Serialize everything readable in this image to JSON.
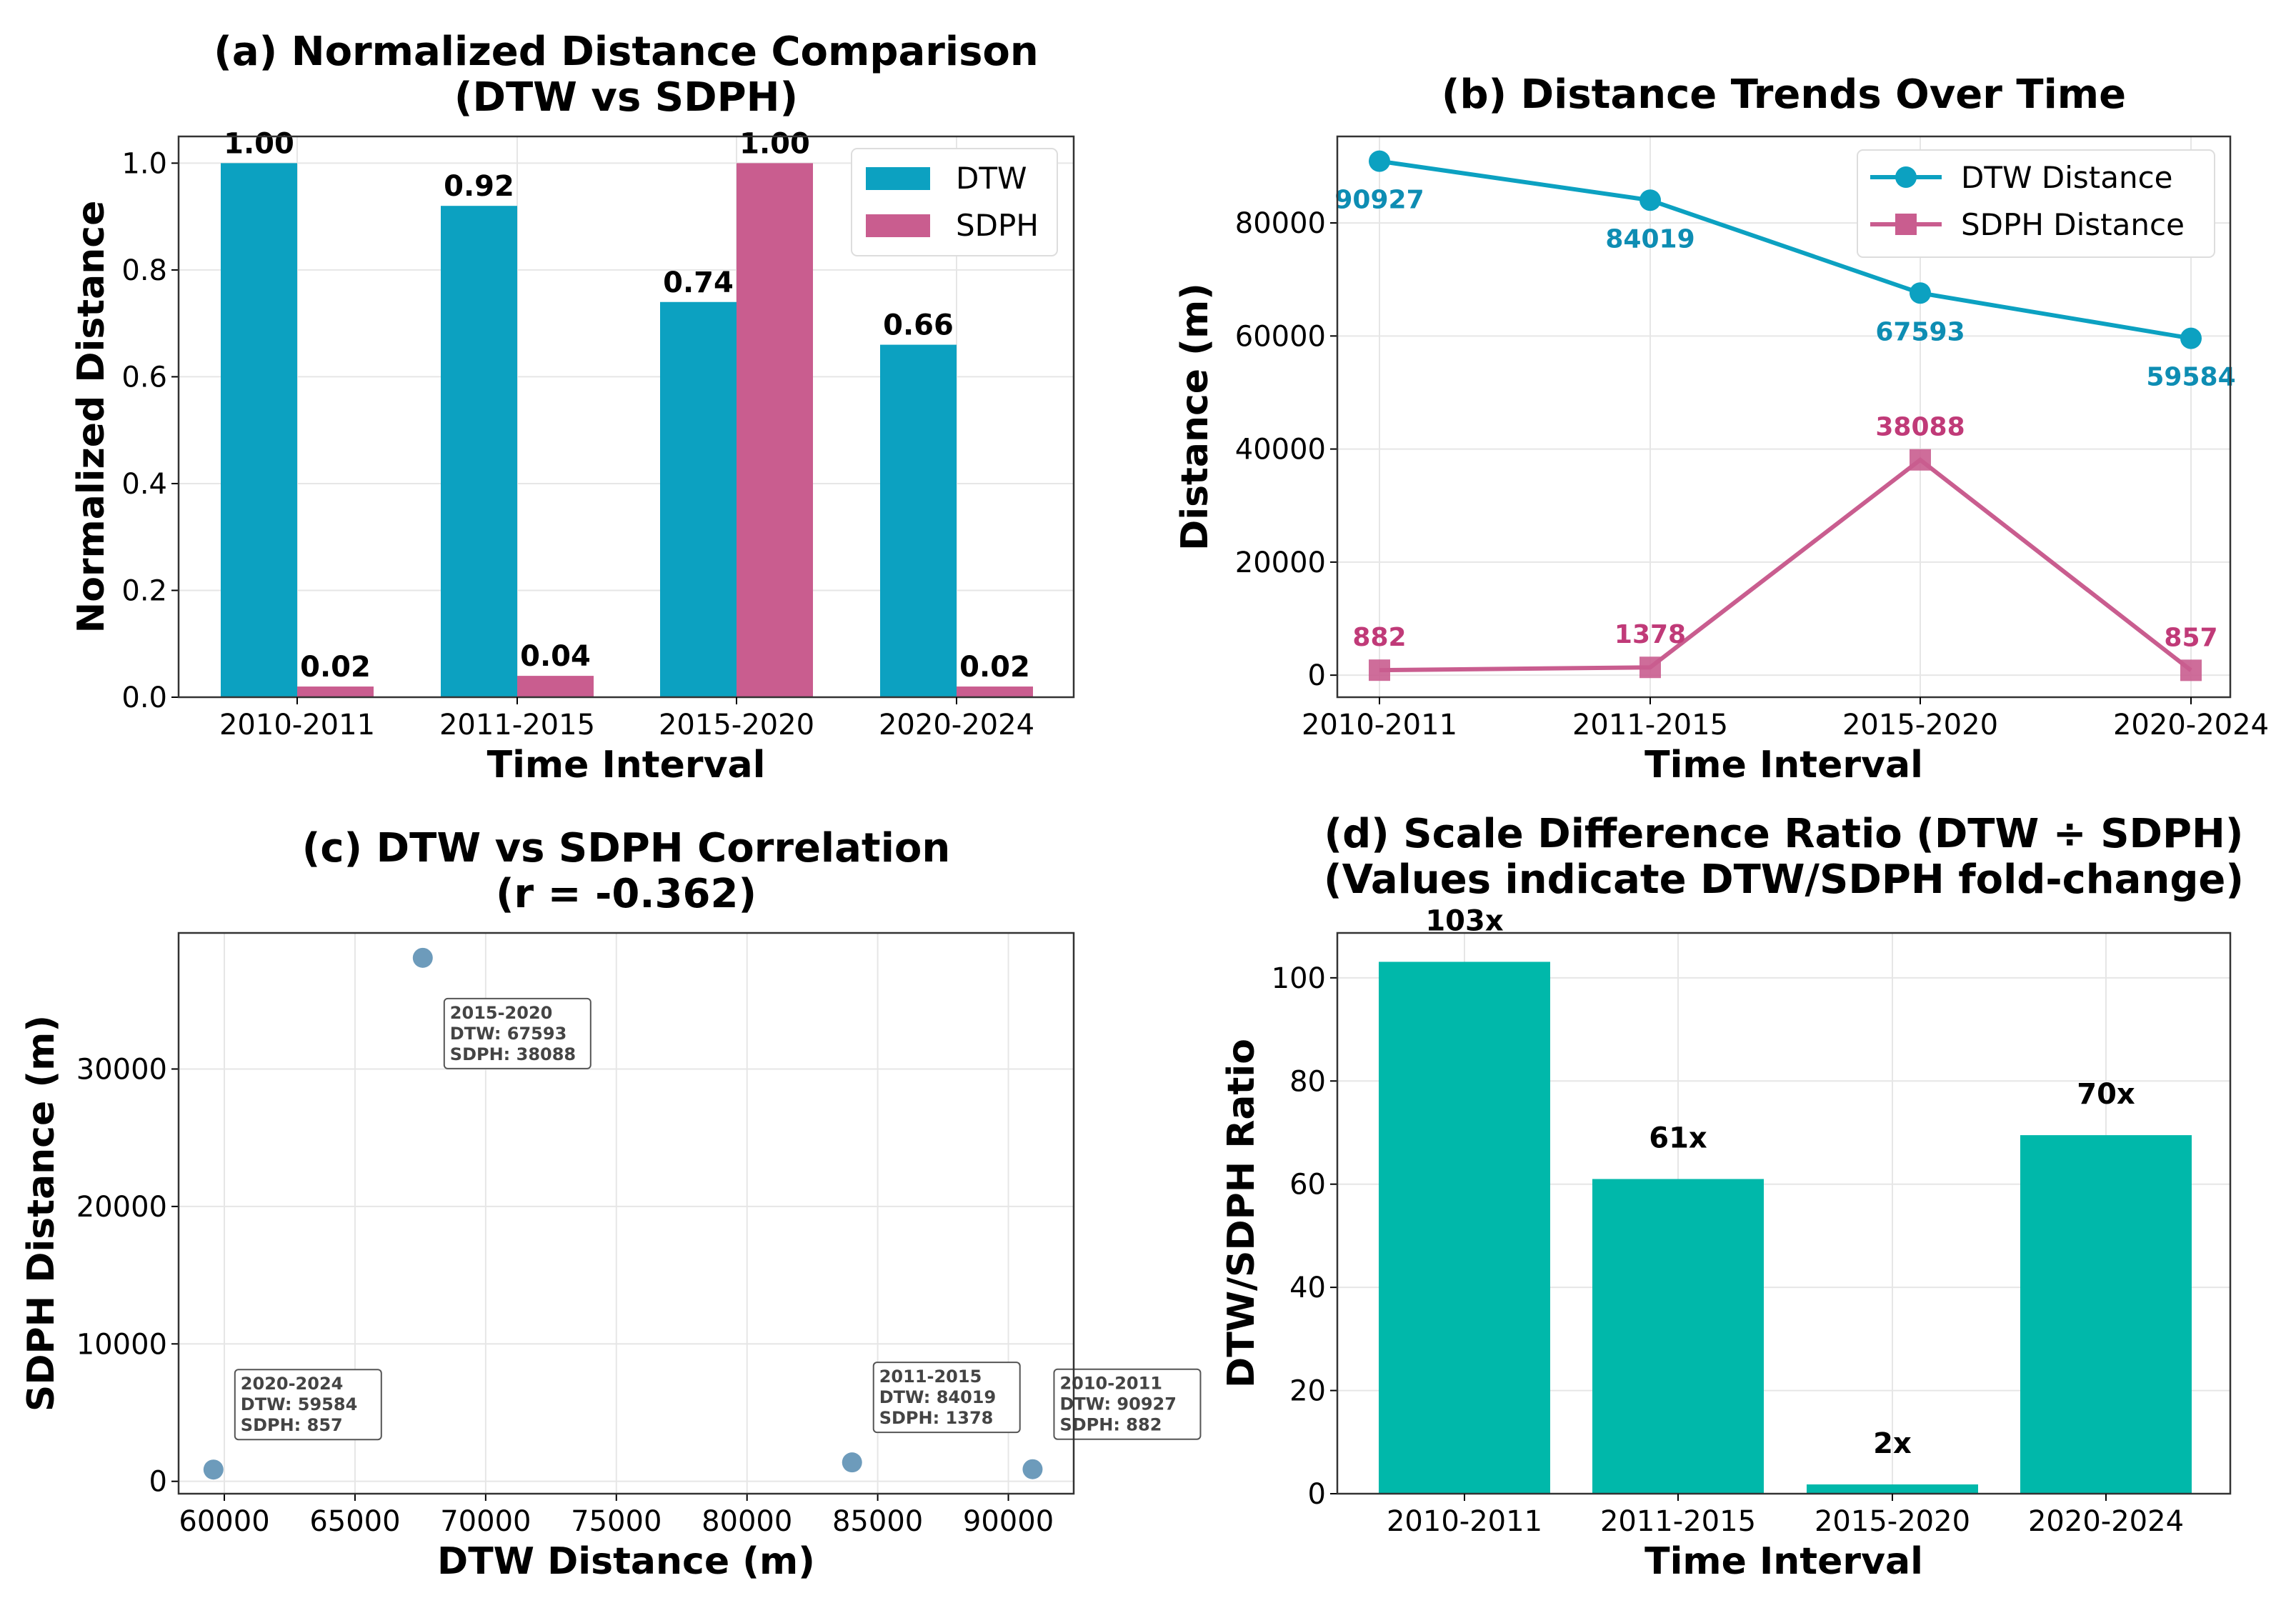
{
  "colors": {
    "dtw": "#0ca1c1",
    "sdph": "#c95d8f",
    "dtw_label": "#0e8db3",
    "sdph_label": "#c03a78",
    "scatter": "#6d9bbb",
    "ratio": "#00b8aa"
  },
  "chart_data": [
    {
      "type": "bar",
      "title": "(a) Normalized Distance Comparison\n(DTW vs SDPH)",
      "xlabel": "Time Interval",
      "ylabel": "Normalized Distance",
      "categories": [
        "2010-2011",
        "2011-2015",
        "2015-2020",
        "2020-2024"
      ],
      "series": [
        {
          "name": "DTW",
          "values": [
            1.0,
            0.92,
            0.74,
            0.66
          ],
          "labels": [
            "1.00",
            "0.92",
            "0.74",
            "0.66"
          ]
        },
        {
          "name": "SDPH",
          "values": [
            0.02,
            0.04,
            1.0,
            0.02
          ],
          "labels": [
            "0.02",
            "0.04",
            "1.00",
            "0.02"
          ]
        }
      ],
      "ylim": [
        0,
        1.05
      ],
      "yticks": [
        "0.0",
        "0.2",
        "0.4",
        "0.6",
        "0.8",
        "1.0"
      ],
      "legend": "top-right",
      "grid": true
    },
    {
      "type": "line",
      "title": "(b) Distance Trends Over Time",
      "xlabel": "Time Interval",
      "ylabel": "Distance (m)",
      "categories": [
        "2010-2011",
        "2011-2015",
        "2015-2020",
        "2020-2024"
      ],
      "series": [
        {
          "name": "DTW Distance",
          "values": [
            90927,
            84019,
            67593,
            59584
          ],
          "marker": "circle"
        },
        {
          "name": "SDPH Distance",
          "values": [
            882,
            1378,
            38088,
            857
          ],
          "marker": "square"
        }
      ],
      "ylim": [
        -3900,
        95300
      ],
      "yticks": [
        "0",
        "20000",
        "40000",
        "60000",
        "80000"
      ],
      "legend": "top-right",
      "grid": true
    },
    {
      "type": "scatter",
      "title": "(c) DTW vs SDPH Correlation\n(r = -0.362)",
      "xlabel": "DTW Distance (m)",
      "ylabel": "SDPH Distance (m)",
      "points": [
        {
          "x": 90927,
          "y": 882,
          "label": "2010-2011",
          "dtw": "DTW: 90927",
          "sdph": "SDPH: 882"
        },
        {
          "x": 84019,
          "y": 1378,
          "label": "2011-2015",
          "dtw": "DTW: 84019",
          "sdph": "SDPH: 1378"
        },
        {
          "x": 67593,
          "y": 38088,
          "label": "2015-2020",
          "dtw": "DTW: 67593",
          "sdph": "SDPH: 38088"
        },
        {
          "x": 59584,
          "y": 857,
          "label": "2020-2024",
          "dtw": "DTW: 59584",
          "sdph": "SDPH: 857"
        }
      ],
      "xlim": [
        58250,
        92500
      ],
      "ylim": [
        -900,
        39900
      ],
      "xticks": [
        "60000",
        "65000",
        "70000",
        "75000",
        "80000",
        "85000",
        "90000"
      ],
      "yticks": [
        "0",
        "10000",
        "20000",
        "30000"
      ],
      "grid": true
    },
    {
      "type": "bar",
      "title": "(d) Scale Difference Ratio (DTW ÷ SDPH)\n(Values indicate DTW/SDPH fold-change)",
      "xlabel": "Time Interval",
      "ylabel": "DTW/SDPH Ratio",
      "categories": [
        "2010-2011",
        "2011-2015",
        "2015-2020",
        "2020-2024"
      ],
      "values": [
        103.1,
        61.0,
        1.8,
        69.5
      ],
      "labels": [
        "103x",
        "61x",
        "2x",
        "70x"
      ],
      "ylim": [
        0,
        108.7
      ],
      "yticks": [
        "0",
        "20",
        "40",
        "60",
        "80",
        "100"
      ],
      "grid": true
    }
  ]
}
